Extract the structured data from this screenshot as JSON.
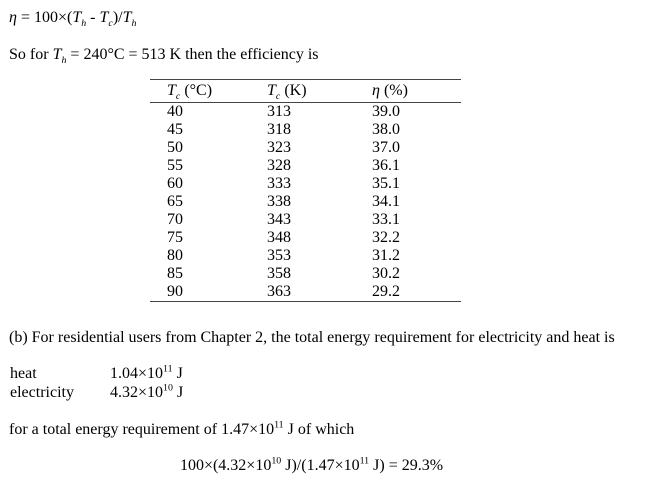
{
  "page": {
    "background_color": "#ffffff",
    "text_color": "#000000",
    "table_rule_color": "#444444"
  },
  "content": {
    "efficiency_formula": "<i>η</i> = 100×(<i>T<sub>h</sub></i> - <i>T<sub>c</sub></i>)/<i>T<sub>h</sub></i>",
    "intro_line": "So for <i>T<sub>h</sub></i> = 240°C = 513 K then the efficiency is",
    "paragraph_b": "(b) For residential users from Chapter 2, the total energy requirement for electricity and heat is",
    "total_line": "for a total energy requirement of 1.47×10<sup>11</sup> J of which",
    "percentage_formula": "100×(4.32×10<sup>10</sup> J)/(1.47×10<sup>11</sup> J) = 29.3%"
  },
  "table": {
    "headers": [
      "<i>T<sub>c</sub></i> (°C)",
      "<i>T<sub>c</sub></i> (K)",
      "<i>η</i> (%)"
    ],
    "rows": [
      [
        "40",
        "313",
        "39.0"
      ],
      [
        "45",
        "318",
        "38.0"
      ],
      [
        "50",
        "323",
        "37.0"
      ],
      [
        "55",
        "328",
        "36.1"
      ],
      [
        "60",
        "333",
        "35.1"
      ],
      [
        "65",
        "338",
        "34.1"
      ],
      [
        "70",
        "343",
        "33.1"
      ],
      [
        "75",
        "348",
        "32.2"
      ],
      [
        "80",
        "353",
        "31.2"
      ],
      [
        "85",
        "358",
        "30.2"
      ],
      [
        "90",
        "363",
        "29.2"
      ]
    ]
  },
  "energy": {
    "heat_label": "heat",
    "heat_value": "1.04×10<sup>11</sup> J",
    "electricity_label": "electricity",
    "electricity_value": "4.32×10<sup>10</sup> J"
  }
}
